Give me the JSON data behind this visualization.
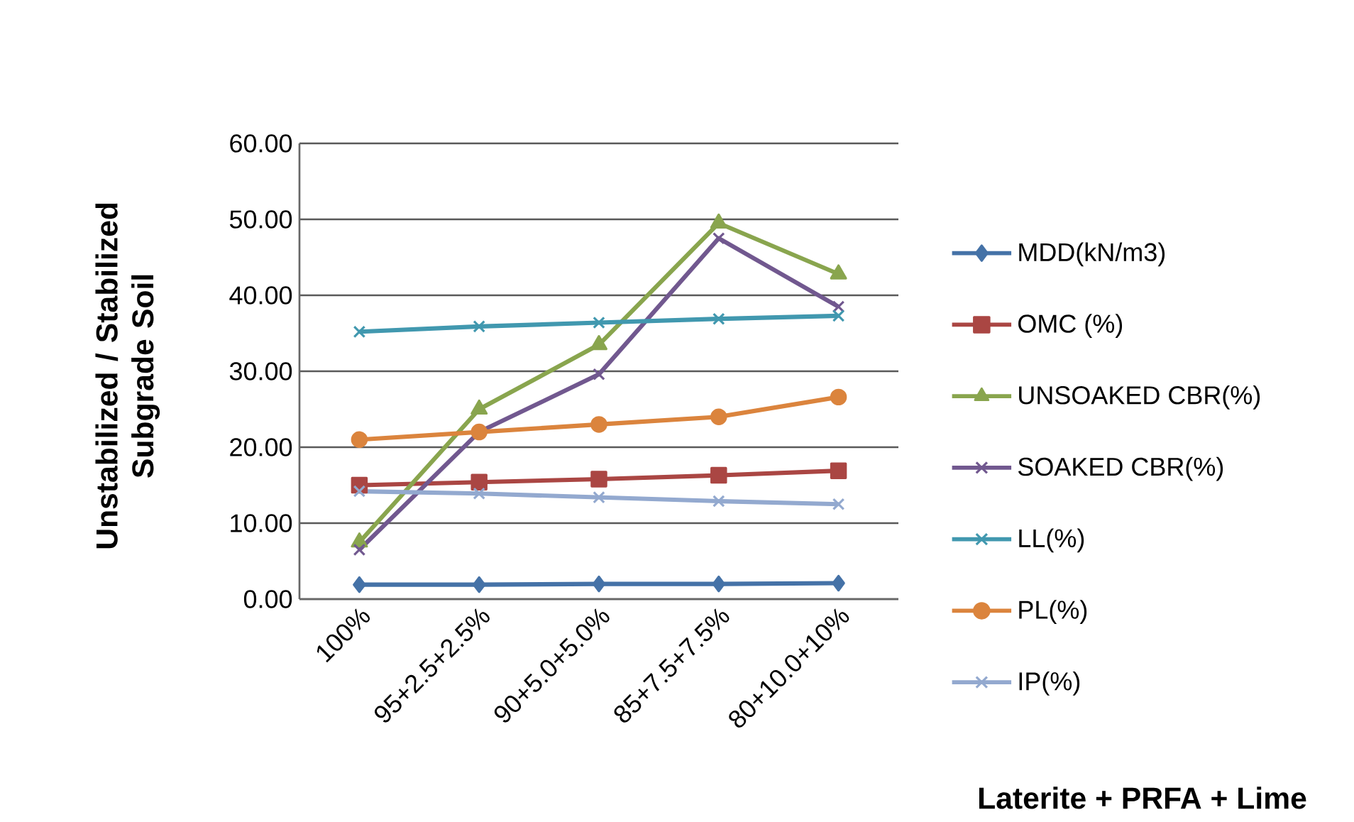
{
  "chart_data": {
    "type": "line",
    "xlabel": "Laterite + PRFA + Lime",
    "ylabel": "Unstabilized / Stabilized Subgrade  Soil",
    "categories": [
      "100%",
      "95+2.5+2.5%",
      "90+5.0+5.0%",
      "85+7.5+7.5%",
      "80+10.0+10%"
    ],
    "ylim": [
      0,
      60
    ],
    "yticks": [
      {
        "value": 0,
        "label": "0.00"
      },
      {
        "value": 10,
        "label": "10.00"
      },
      {
        "value": 20,
        "label": "20.00"
      },
      {
        "value": 30,
        "label": "30.00"
      },
      {
        "value": 40,
        "label": "40.00"
      },
      {
        "value": 50,
        "label": "50.00"
      },
      {
        "value": 60,
        "label": "60.00"
      }
    ],
    "grid": "y",
    "legend": "right",
    "series": [
      {
        "name": "MDD(kN/m3)",
        "color": "#4572a7",
        "marker": "diamond",
        "values": [
          1.9,
          1.9,
          2.0,
          2.0,
          2.1
        ]
      },
      {
        "name": "OMC (%)",
        "color": "#aa4643",
        "marker": "square",
        "values": [
          15.0,
          15.4,
          15.8,
          16.3,
          16.9
        ]
      },
      {
        "name": "UNSOAKED CBR(%)",
        "color": "#89a54e",
        "marker": "triangle",
        "values": [
          7.5,
          25.0,
          33.5,
          49.5,
          42.8
        ]
      },
      {
        "name": "SOAKED CBR(%)",
        "color": "#71588f",
        "marker": "cross",
        "values": [
          6.5,
          22.0,
          29.6,
          47.5,
          38.5
        ]
      },
      {
        "name": "LL(%)",
        "color": "#4198af",
        "marker": "cross",
        "values": [
          35.2,
          35.9,
          36.4,
          36.9,
          37.3
        ]
      },
      {
        "name": "PL(%)",
        "color": "#db843d",
        "marker": "circle",
        "values": [
          21.0,
          22.0,
          23.0,
          24.0,
          26.6
        ]
      },
      {
        "name": "IP(%)",
        "color": "#93a9cf",
        "marker": "cross",
        "values": [
          14.2,
          13.9,
          13.4,
          12.9,
          12.5
        ]
      }
    ]
  }
}
